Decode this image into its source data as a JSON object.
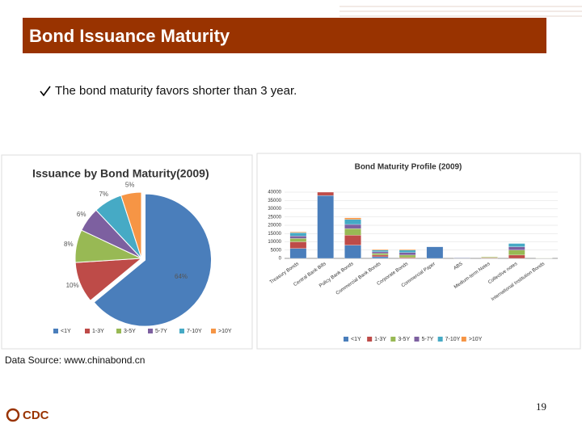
{
  "header": {
    "title": "Bond Issuance Maturity"
  },
  "bullet": "The bond maturity favors shorter than 3 year.",
  "chart_data": [
    {
      "type": "pie",
      "title": "Issuance by Bond Maturity(2009)",
      "categories": [
        "<1Y",
        "1-3Y",
        "3-5Y",
        "5-7Y",
        "7-10Y",
        ">10Y"
      ],
      "values": [
        64,
        10,
        8,
        6,
        7,
        5
      ],
      "value_labels": [
        "64%",
        "10%",
        "8%",
        "6%",
        "7%",
        "5%"
      ],
      "colors": [
        "#4a7ebb",
        "#be4b48",
        "#98b954",
        "#7d60a0",
        "#46aac5",
        "#f69545"
      ],
      "legend": "bottom"
    },
    {
      "type": "bar",
      "stacked": true,
      "title": "Bond Maturity Profile  (2009)",
      "categories": [
        "Treasury Bonds",
        "Central Bank Bills",
        "Policy Bank Bonds",
        "Commercial Bank Bonds",
        "Corporate Bonds",
        "Commercial Paper",
        "ABS",
        "Medium-term Notes",
        "Collective notes",
        "International Institution Bonds"
      ],
      "series": [
        {
          "name": "<1Y",
          "color": "#4a7ebb",
          "values": [
            6000,
            38000,
            8000,
            1000,
            0,
            7000,
            300,
            0,
            0,
            0
          ]
        },
        {
          "name": "1-3Y",
          "color": "#be4b48",
          "values": [
            4000,
            2000,
            6000,
            1000,
            500,
            0,
            200,
            300,
            2000,
            0
          ]
        },
        {
          "name": "3-5Y",
          "color": "#98b954",
          "values": [
            2000,
            0,
            4000,
            1000,
            1500,
            0,
            0,
            500,
            3000,
            200
          ]
        },
        {
          "name": "5-7Y",
          "color": "#7d60a0",
          "values": [
            1500,
            0,
            2500,
            1000,
            1500,
            0,
            0,
            0,
            2000,
            0
          ]
        },
        {
          "name": "7-10Y",
          "color": "#46aac5",
          "values": [
            2000,
            0,
            3000,
            1000,
            1500,
            0,
            0,
            0,
            2000,
            0
          ]
        },
        {
          "name": ">10Y",
          "color": "#f69545",
          "values": [
            500,
            0,
            1000,
            500,
            500,
            0,
            0,
            0,
            0,
            0
          ]
        }
      ],
      "ylim": [
        0,
        40000
      ],
      "yticks": [
        0,
        5000,
        10000,
        15000,
        20000,
        25000,
        30000,
        35000,
        40000
      ],
      "legend": "bottom"
    }
  ],
  "source": "Data Source: www.chinabond.cn",
  "logo": "CDC",
  "page_number": "19"
}
